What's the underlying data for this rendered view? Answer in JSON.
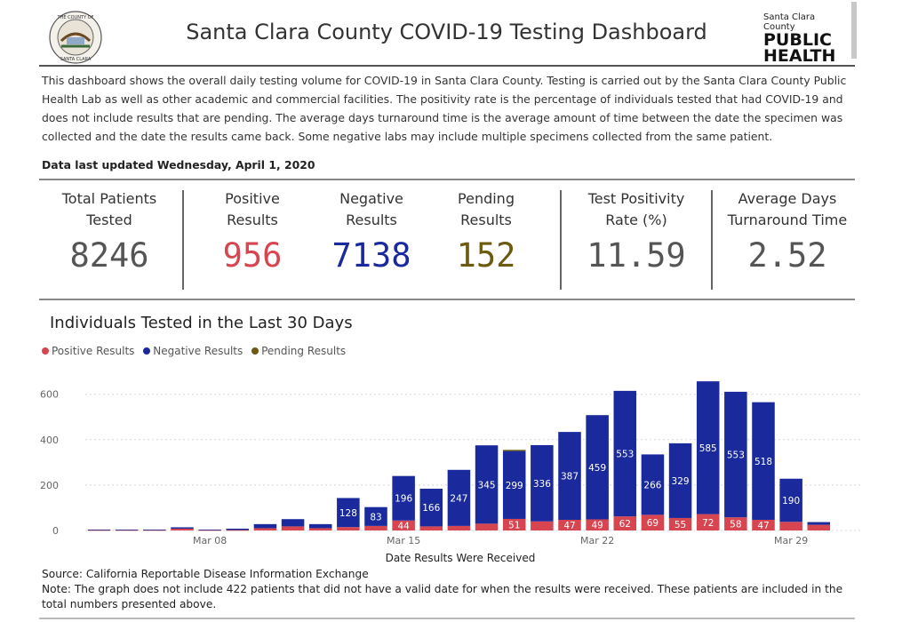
{
  "header": {
    "title": "Santa Clara County COVID-19 Testing Dashboard",
    "seal_text": "THE COUNTY OF SANTA CLARA",
    "logo_small": "Santa Clara County",
    "logo_line1": "PUBLIC",
    "logo_line2": "HEALTH"
  },
  "description": "This dashboard shows the overall daily testing volume for COVID-19 in Santa Clara County. Testing is carried out by the Santa Clara County Public Health Lab as well as other academic and commercial facilities. The positivity rate is the percentage of individuals tested that had COVID-19 and does not include results that are pending. The average days turnaround time is the average amount of time between the date the specimen was collected and the date the results came back. Some negative labs may include multiple specimens collected from the same patient.",
  "updated": "Data last updated Wednesday, April 1, 2020",
  "kpis": {
    "total": {
      "label1": "Total Patients",
      "label2": "Tested",
      "value": "8246"
    },
    "positive": {
      "label1": "Positive",
      "label2": "Results",
      "value": "956"
    },
    "negative": {
      "label1": "Negative",
      "label2": "Results",
      "value": "7138"
    },
    "pending": {
      "label1": "Pending",
      "label2": "Results",
      "value": "152"
    },
    "positivity": {
      "label1": "Test Positivity",
      "label2": "Rate (%)",
      "value": "11.59"
    },
    "turnaround": {
      "label1": "Average Days",
      "label2": "Turnaround Time",
      "value": "2.52"
    }
  },
  "colors": {
    "positive": "#d64550",
    "negative": "#1a2a9c",
    "pending": "#6b5a10",
    "kpi_gray": "#555555"
  },
  "chart_data": {
    "type": "bar",
    "stacked": true,
    "title": "Individuals Tested in the Last 30 Days",
    "xlabel": "Date Results Were Received",
    "ylabel": "",
    "ylim": [
      0,
      680
    ],
    "yticks": [
      0,
      200,
      400,
      600
    ],
    "x_tick_labels": [
      {
        "index": 4,
        "label": "Mar 08"
      },
      {
        "index": 11,
        "label": "Mar 15"
      },
      {
        "index": 18,
        "label": "Mar 22"
      },
      {
        "index": 25,
        "label": "Mar 29"
      }
    ],
    "legend_position": "top-left",
    "grid": true,
    "categories": [
      "d1",
      "d2",
      "d3",
      "d4",
      "d5",
      "d6",
      "d7",
      "d8",
      "d9",
      "d10",
      "d11",
      "d12",
      "d13",
      "d14",
      "d15",
      "d16",
      "d17",
      "d18",
      "d19",
      "d20",
      "d21",
      "d22",
      "d23",
      "d24",
      "d25",
      "d26",
      "d27",
      "d28"
    ],
    "series": [
      {
        "name": "Positive Results",
        "values": [
          2,
          2,
          2,
          8,
          2,
          2,
          10,
          18,
          10,
          15,
          20,
          44,
          18,
          20,
          30,
          51,
          40,
          47,
          49,
          62,
          69,
          55,
          72,
          58,
          47,
          38,
          25,
          0
        ],
        "labels": [
          "",
          "",
          "",
          "",
          "",
          "",
          "",
          "",
          "",
          "",
          "",
          "44",
          "",
          "",
          "",
          "51",
          "",
          "47",
          "49",
          "62",
          "69",
          "55",
          "72",
          "58",
          "47",
          "",
          "",
          ""
        ]
      },
      {
        "name": "Negative Results",
        "values": [
          2,
          2,
          2,
          6,
          2,
          6,
          18,
          32,
          18,
          128,
          83,
          196,
          166,
          247,
          345,
          299,
          336,
          387,
          459,
          553,
          266,
          329,
          585,
          553,
          518,
          190,
          12,
          0
        ],
        "labels": [
          "",
          "",
          "",
          "",
          "",
          "",
          "",
          "",
          "",
          "128",
          "83",
          "196",
          "166",
          "247",
          "345",
          "299",
          "336",
          "387",
          "459",
          "553",
          "266",
          "329",
          "585",
          "553",
          "518",
          "190",
          "",
          ""
        ]
      },
      {
        "name": "Pending Results",
        "values": [
          0,
          0,
          0,
          0,
          0,
          0,
          0,
          0,
          0,
          0,
          0,
          0,
          0,
          0,
          0,
          5,
          0,
          0,
          0,
          0,
          0,
          0,
          0,
          0,
          0,
          0,
          0,
          0
        ],
        "labels": [
          "",
          "",
          "",
          "",
          "",
          "",
          "",
          "",
          "",
          "",
          "",
          "",
          "",
          "",
          "",
          "",
          "",
          "",
          "",
          "",
          "",
          "",
          "",
          "",
          "",
          "",
          "",
          ""
        ]
      }
    ]
  },
  "footer": {
    "source": "Source: California Reportable Disease Information Exchange",
    "note": "Note: The graph does not include 422 patients that did not have a valid date for when the results were received. These patients are included in the total numbers presented above."
  }
}
